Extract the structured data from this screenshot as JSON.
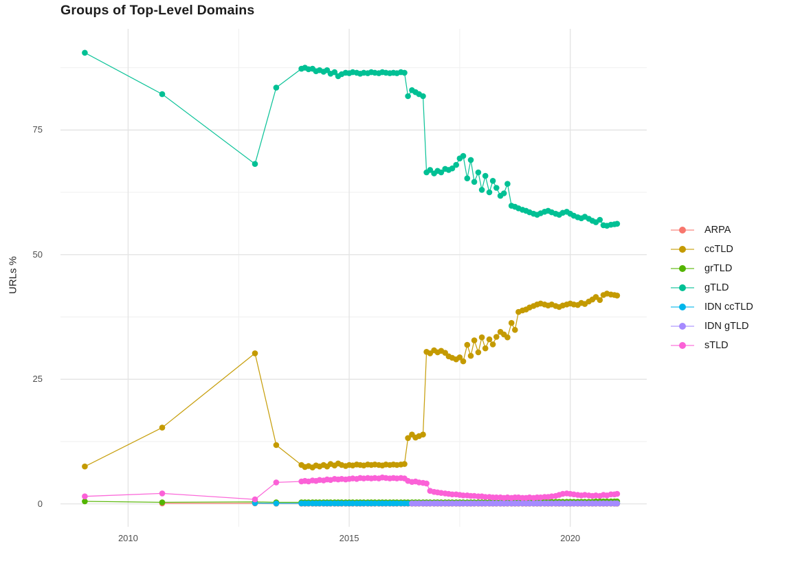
{
  "chart_data": {
    "type": "line",
    "title": "Groups of Top-Level Domains",
    "xlabel": "",
    "ylabel": "URLs %",
    "background": "#ffffff",
    "grid": {
      "major_color": "#e3e3e3",
      "minor_color": "#efefef"
    },
    "xlim": [
      2008.47,
      2021.73
    ],
    "ylim": [
      -4.6,
      95.3
    ],
    "x_ticks": [
      {
        "v": 2010,
        "label": "2010"
      },
      {
        "v": 2015,
        "label": "2015"
      },
      {
        "v": 2020,
        "label": "2020"
      }
    ],
    "x_minor": [
      2012.5,
      2017.5
    ],
    "y_ticks": [
      {
        "v": 0,
        "label": "0"
      },
      {
        "v": 25,
        "label": "25"
      },
      {
        "v": 50,
        "label": "50"
      },
      {
        "v": 75,
        "label": "75"
      }
    ],
    "y_minor": [
      12.5,
      37.5,
      62.5,
      87.5
    ],
    "legend_position": "right",
    "x_dense": [
      2013.92,
      2014.0,
      2014.08,
      2014.17,
      2014.25,
      2014.33,
      2014.42,
      2014.5,
      2014.58,
      2014.67,
      2014.75,
      2014.83,
      2014.92,
      2015.0,
      2015.08,
      2015.17,
      2015.25,
      2015.33,
      2015.42,
      2015.5,
      2015.58,
      2015.67,
      2015.75,
      2015.83,
      2015.92,
      2016.0,
      2016.08,
      2016.17,
      2016.25,
      2016.33,
      2016.42,
      2016.5,
      2016.58,
      2016.67,
      2016.75,
      2016.83,
      2016.92,
      2017.0,
      2017.08,
      2017.17,
      2017.25,
      2017.33,
      2017.42,
      2017.5,
      2017.58,
      2017.67,
      2017.75,
      2017.83,
      2017.92,
      2018.0,
      2018.08,
      2018.17,
      2018.25,
      2018.33,
      2018.42,
      2018.5,
      2018.58,
      2018.67,
      2018.75,
      2018.83,
      2018.92,
      2019.0,
      2019.08,
      2019.17,
      2019.25,
      2019.33,
      2019.42,
      2019.5,
      2019.58,
      2019.67,
      2019.75,
      2019.83,
      2019.92,
      2020.0,
      2020.08,
      2020.17,
      2020.25,
      2020.33,
      2020.42,
      2020.5,
      2020.58,
      2020.67,
      2020.75,
      2020.83,
      2020.92,
      2021.0,
      2021.06
    ],
    "series": [
      {
        "name": "ARPA",
        "color": "#F8766D",
        "sparse": [
          [
            2010.77,
            0.1
          ],
          [
            2012.87,
            0.1
          ],
          [
            2013.35,
            0.05
          ]
        ],
        "dense_const": 0.05
      },
      {
        "name": "ccTLD",
        "color": "#C49A00",
        "sparse": [
          [
            2009.02,
            7.5
          ],
          [
            2010.77,
            15.3
          ],
          [
            2012.87,
            30.2
          ],
          [
            2013.35,
            11.8
          ]
        ],
        "dense": [
          7.8,
          7.4,
          7.6,
          7.3,
          7.7,
          7.5,
          7.8,
          7.5,
          8.0,
          7.7,
          8.1,
          7.8,
          7.6,
          7.8,
          7.7,
          7.9,
          7.8,
          7.7,
          7.9,
          7.8,
          7.9,
          7.8,
          7.7,
          7.9,
          7.8,
          7.9,
          7.8,
          7.9,
          8.0,
          13.2,
          13.9,
          13.3,
          13.6,
          13.9,
          30.5,
          30.2,
          30.8,
          30.4,
          30.7,
          30.3,
          29.6,
          29.3,
          29.0,
          29.4,
          28.6,
          31.9,
          29.7,
          32.8,
          30.4,
          33.4,
          31.2,
          33.0,
          32.0,
          33.5,
          34.5,
          34.0,
          33.4,
          36.3,
          34.9,
          38.5,
          38.8,
          39.0,
          39.4,
          39.7,
          40.0,
          40.2,
          40.0,
          39.8,
          40.0,
          39.7,
          39.5,
          39.8,
          40.0,
          40.2,
          40.0,
          39.9,
          40.3,
          40.1,
          40.6,
          41.0,
          41.5,
          40.9,
          41.9,
          42.2,
          42.0,
          41.9,
          41.8
        ]
      },
      {
        "name": "grTLD",
        "color": "#53B400",
        "sparse": [
          [
            2009.02,
            0.5
          ],
          [
            2010.77,
            0.3
          ],
          [
            2012.87,
            0.4
          ],
          [
            2013.35,
            0.3
          ]
        ],
        "dense": [
          0.3,
          0.3,
          0.3,
          0.3,
          0.3,
          0.3,
          0.3,
          0.3,
          0.3,
          0.3,
          0.3,
          0.3,
          0.3,
          0.3,
          0.3,
          0.3,
          0.3,
          0.3,
          0.3,
          0.3,
          0.3,
          0.3,
          0.3,
          0.3,
          0.3,
          0.3,
          0.3,
          0.3,
          0.3,
          0.3,
          0.3,
          0.3,
          0.3,
          0.3,
          0.3,
          0.3,
          0.3,
          0.3,
          0.3,
          0.3,
          0.3,
          0.3,
          0.3,
          0.3,
          0.3,
          0.3,
          0.3,
          0.3,
          0.3,
          0.3,
          0.3,
          0.3,
          0.3,
          0.3,
          0.3,
          0.3,
          0.3,
          0.3,
          0.3,
          0.3,
          0.3,
          0.4,
          0.4,
          0.4,
          0.4,
          0.4,
          0.4,
          0.4,
          0.4,
          0.4,
          0.4,
          0.4,
          0.4,
          0.4,
          0.4,
          0.4,
          0.4,
          0.4,
          0.4,
          0.4,
          0.5,
          0.5,
          0.5,
          0.5,
          0.5,
          0.5,
          0.5
        ]
      },
      {
        "name": "gTLD",
        "color": "#00C094",
        "sparse": [
          [
            2009.02,
            90.5
          ],
          [
            2010.77,
            82.2
          ],
          [
            2012.87,
            68.2
          ],
          [
            2013.35,
            83.5
          ]
        ],
        "dense": [
          87.3,
          87.5,
          87.2,
          87.3,
          86.8,
          87.0,
          86.7,
          87.0,
          86.3,
          86.6,
          85.8,
          86.2,
          86.5,
          86.4,
          86.6,
          86.5,
          86.3,
          86.5,
          86.4,
          86.6,
          86.5,
          86.4,
          86.6,
          86.5,
          86.4,
          86.5,
          86.4,
          86.6,
          86.5,
          81.8,
          83.0,
          82.6,
          82.2,
          81.8,
          66.5,
          67.0,
          66.3,
          66.8,
          66.5,
          67.2,
          67.0,
          67.3,
          68.0,
          69.3,
          69.8,
          65.3,
          69.0,
          64.6,
          66.5,
          63.0,
          65.8,
          62.5,
          64.8,
          63.4,
          61.8,
          62.3,
          64.2,
          59.8,
          59.6,
          59.3,
          59.0,
          58.8,
          58.5,
          58.2,
          58.0,
          58.3,
          58.6,
          58.8,
          58.5,
          58.2,
          58.0,
          58.4,
          58.6,
          58.2,
          57.8,
          57.5,
          57.3,
          57.6,
          57.2,
          56.8,
          56.5,
          57.0,
          55.9,
          55.8,
          56.0,
          56.1,
          56.2
        ]
      },
      {
        "name": "IDN ccTLD",
        "color": "#00B6EB",
        "sparse": [
          [
            2012.87,
            0.15
          ],
          [
            2013.35,
            0.1
          ]
        ],
        "dense_const": 0.1
      },
      {
        "name": "IDN gTLD",
        "color": "#A58AFF",
        "sparse": [],
        "dense_const": 0.1,
        "dense_from": 2016.42
      },
      {
        "name": "sTLD",
        "color": "#FB61D7",
        "sparse": [
          [
            2009.02,
            1.5
          ],
          [
            2010.77,
            2.1
          ],
          [
            2012.87,
            0.9
          ],
          [
            2013.35,
            4.3
          ]
        ],
        "dense": [
          4.5,
          4.6,
          4.5,
          4.7,
          4.6,
          4.8,
          4.7,
          4.9,
          4.8,
          5.0,
          4.9,
          5.0,
          4.9,
          5.0,
          5.1,
          5.0,
          5.2,
          5.1,
          5.2,
          5.1,
          5.2,
          5.1,
          5.3,
          5.2,
          5.1,
          5.2,
          5.1,
          5.2,
          5.1,
          4.6,
          4.4,
          4.5,
          4.3,
          4.2,
          4.1,
          2.6,
          2.4,
          2.3,
          2.2,
          2.1,
          2.0,
          1.9,
          1.9,
          1.8,
          1.7,
          1.7,
          1.6,
          1.6,
          1.5,
          1.5,
          1.4,
          1.4,
          1.3,
          1.3,
          1.3,
          1.2,
          1.3,
          1.2,
          1.3,
          1.3,
          1.2,
          1.2,
          1.3,
          1.2,
          1.3,
          1.3,
          1.4,
          1.4,
          1.5,
          1.6,
          1.8,
          2.0,
          2.1,
          2.0,
          1.9,
          1.8,
          1.7,
          1.8,
          1.7,
          1.6,
          1.7,
          1.6,
          1.8,
          1.7,
          1.9,
          1.9,
          2.0
        ]
      }
    ]
  }
}
